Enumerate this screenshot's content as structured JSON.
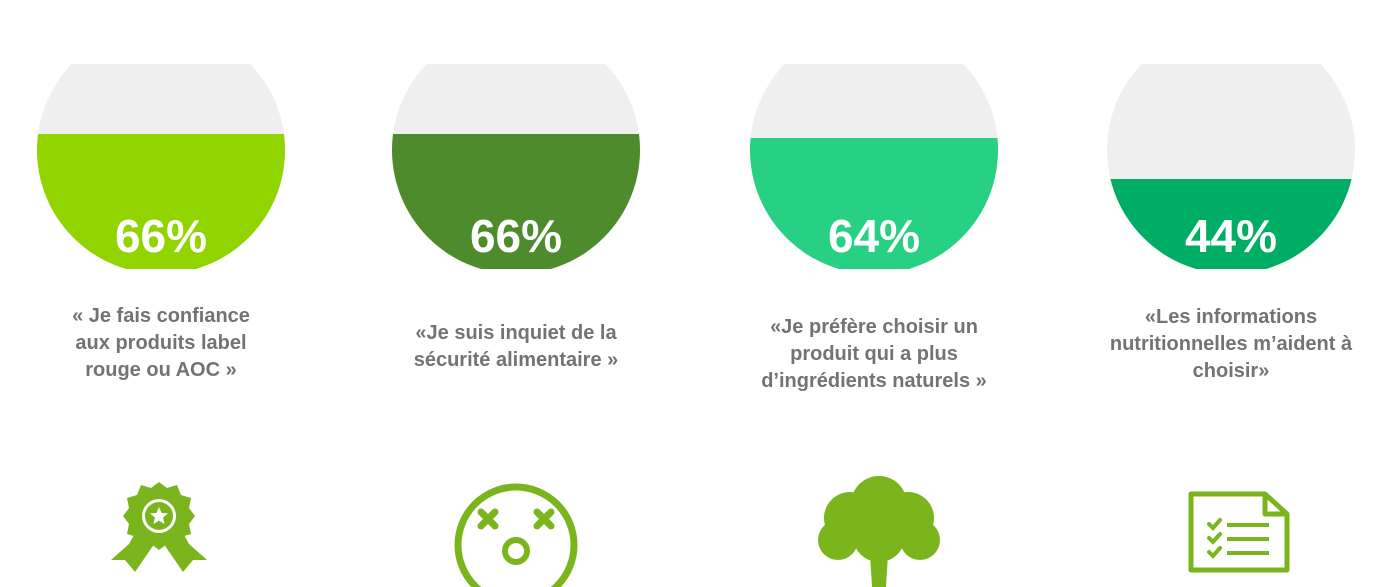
{
  "chart_data": {
    "type": "infographic-gauges",
    "items": [
      {
        "value": 66,
        "label": "66%",
        "color": "#92d400",
        "quote_lines": [
          "« Je fais confiance",
          "aux produits label",
          "rouge ou AOC »"
        ],
        "icon": "award-ribbon-icon"
      },
      {
        "value": 66,
        "label": "66%",
        "color": "#4e8b2d",
        "quote_lines": [
          "«Je suis inquiet de la",
          "sécurité alimentaire »"
        ],
        "icon": "shocked-face-icon"
      },
      {
        "value": 64,
        "label": "64%",
        "color": "#28d083",
        "quote_lines": [
          "«Je préfère choisir un",
          "produit qui a plus",
          "d’ingrédients naturels »"
        ],
        "icon": "tree-icon"
      },
      {
        "value": 44,
        "label": "44%",
        "color": "#00ad65",
        "quote_lines": [
          "«Les informations",
          "nutritionnelles m’aident à",
          "choisir»"
        ],
        "icon": "checklist-document-icon"
      }
    ]
  },
  "colors": {
    "empty": "#efefef",
    "text": "#737373",
    "icon": "#7ab51d"
  }
}
